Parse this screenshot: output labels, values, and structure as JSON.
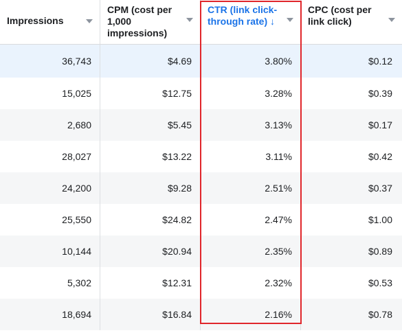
{
  "columns": [
    {
      "key": "impressions",
      "label": "Impressions",
      "sorted": false
    },
    {
      "key": "cpm",
      "label": "CPM (cost per 1,000 impressions)",
      "sorted": false
    },
    {
      "key": "ctr",
      "label": "CTR (link click-through rate) ↓",
      "sorted": true
    },
    {
      "key": "cpc",
      "label": "CPC (cost per link click)",
      "sorted": false
    }
  ],
  "rows": [
    {
      "impressions": "36,743",
      "cpm": "$4.69",
      "ctr": "3.80%",
      "cpc": "$0.12"
    },
    {
      "impressions": "15,025",
      "cpm": "$12.75",
      "ctr": "3.28%",
      "cpc": "$0.39"
    },
    {
      "impressions": "2,680",
      "cpm": "$5.45",
      "ctr": "3.13%",
      "cpc": "$0.17"
    },
    {
      "impressions": "28,027",
      "cpm": "$13.22",
      "ctr": "3.11%",
      "cpc": "$0.42"
    },
    {
      "impressions": "24,200",
      "cpm": "$9.28",
      "ctr": "2.51%",
      "cpc": "$0.37"
    },
    {
      "impressions": "25,550",
      "cpm": "$24.82",
      "ctr": "2.47%",
      "cpc": "$1.00"
    },
    {
      "impressions": "10,144",
      "cpm": "$20.94",
      "ctr": "2.35%",
      "cpc": "$0.89"
    },
    {
      "impressions": "5,302",
      "cpm": "$12.31",
      "ctr": "2.32%",
      "cpc": "$0.53"
    },
    {
      "impressions": "18,694",
      "cpm": "$16.84",
      "ctr": "2.16%",
      "cpc": "$0.78"
    }
  ],
  "colors": {
    "sorted_header": "#1a73e8",
    "highlight_box": "#e0262b",
    "selected_row": "#eaf3fd",
    "alt_row": "#f5f6f7"
  }
}
